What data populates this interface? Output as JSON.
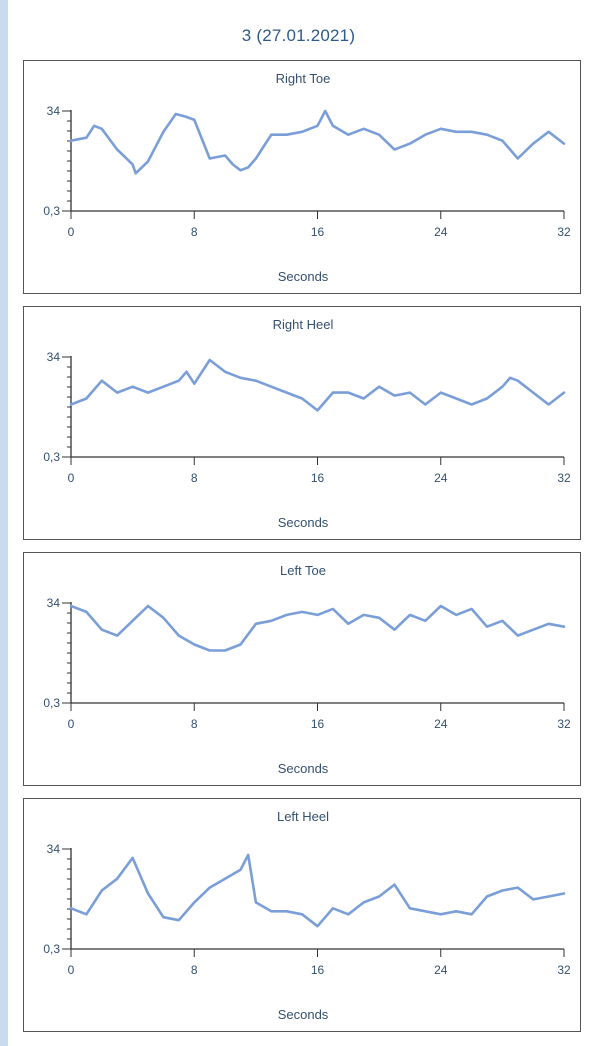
{
  "title": "3 (27.01.2021)",
  "line_color": "#7a9ed8",
  "chart_data": [
    {
      "type": "line",
      "title": "Right Toe",
      "xlabel": "Seconds",
      "ylabel": "",
      "xlim": [
        0,
        32
      ],
      "ylim": [
        0.3,
        34
      ],
      "xticks": [
        "0",
        "8",
        "16",
        "24",
        "32"
      ],
      "yticks": [
        "34",
        "0,3"
      ],
      "x": [
        0,
        1,
        1.5,
        2,
        3,
        4,
        4.2,
        5,
        6,
        6.8,
        7.5,
        8,
        9,
        10,
        10.5,
        11,
        11.5,
        12,
        13,
        14,
        15,
        16,
        16.5,
        17,
        18,
        19,
        20,
        21,
        22,
        23,
        24,
        25,
        26,
        27,
        28,
        29,
        30,
        31,
        32
      ],
      "values": [
        24,
        25,
        29,
        28,
        21,
        16,
        13,
        17,
        27,
        33,
        32,
        31,
        18,
        19,
        16,
        14,
        15,
        18,
        26,
        26,
        27,
        29,
        34,
        29,
        26,
        28,
        26,
        21,
        23,
        26,
        28,
        27,
        27,
        26,
        24,
        18,
        23,
        27,
        23
      ]
    },
    {
      "type": "line",
      "title": "Right Heel",
      "xlabel": "Seconds",
      "ylabel": "",
      "xlim": [
        0,
        32
      ],
      "ylim": [
        0.3,
        34
      ],
      "xticks": [
        "0",
        "8",
        "16",
        "24",
        "32"
      ],
      "yticks": [
        "34",
        "0,3"
      ],
      "x": [
        0,
        1,
        2,
        3,
        4,
        5,
        6,
        7,
        7.5,
        8,
        9,
        9.5,
        10,
        11,
        12,
        13,
        14,
        15,
        16,
        17,
        18,
        19,
        20,
        21,
        22,
        23,
        24,
        25,
        26,
        27,
        28,
        28.5,
        29,
        30,
        31,
        32
      ],
      "values": [
        18,
        20,
        26,
        22,
        24,
        22,
        24,
        26,
        29,
        25,
        33,
        31,
        29,
        27,
        26,
        24,
        22,
        20,
        16,
        22,
        22,
        20,
        24,
        21,
        22,
        18,
        22,
        20,
        18,
        20,
        24,
        27,
        26,
        22,
        18,
        22
      ]
    },
    {
      "type": "line",
      "title": "Left Toe",
      "xlabel": "Seconds",
      "ylabel": "",
      "xlim": [
        0,
        32
      ],
      "ylim": [
        0.3,
        34
      ],
      "xticks": [
        "0",
        "8",
        "16",
        "24",
        "32"
      ],
      "yticks": [
        "34",
        "0,3"
      ],
      "x": [
        0,
        1,
        2,
        3,
        4,
        5,
        6,
        7,
        8,
        9,
        10,
        11,
        12,
        13,
        14,
        15,
        16,
        17,
        18,
        19,
        20,
        21,
        22,
        23,
        24,
        25,
        26,
        27,
        28,
        29,
        30,
        31,
        32
      ],
      "values": [
        33,
        31,
        25,
        23,
        28,
        33,
        29,
        23,
        20,
        18,
        18,
        20,
        27,
        28,
        30,
        31,
        30,
        32,
        27,
        30,
        29,
        25,
        30,
        28,
        33,
        30,
        32,
        26,
        28,
        23,
        25,
        27,
        26
      ]
    },
    {
      "type": "line",
      "title": "Left Heel",
      "xlabel": "Seconds",
      "ylabel": "",
      "xlim": [
        0,
        32
      ],
      "ylim": [
        0.3,
        34
      ],
      "xticks": [
        "0",
        "8",
        "16",
        "24",
        "32"
      ],
      "yticks": [
        "34",
        "0,3"
      ],
      "x": [
        0,
        1,
        2,
        3,
        4,
        5,
        6,
        7,
        8,
        9,
        10,
        11,
        11.5,
        12,
        13,
        14,
        15,
        16,
        17,
        18,
        19,
        20,
        21,
        22,
        23,
        24,
        25,
        26,
        27,
        28,
        29,
        30,
        31,
        32
      ],
      "values": [
        14,
        12,
        20,
        24,
        31,
        19,
        11,
        10,
        16,
        21,
        24,
        27,
        32,
        16,
        13,
        13,
        12,
        8,
        14,
        12,
        16,
        18,
        22,
        14,
        13,
        12,
        13,
        12,
        18,
        20,
        21,
        17,
        18,
        19
      ]
    }
  ]
}
